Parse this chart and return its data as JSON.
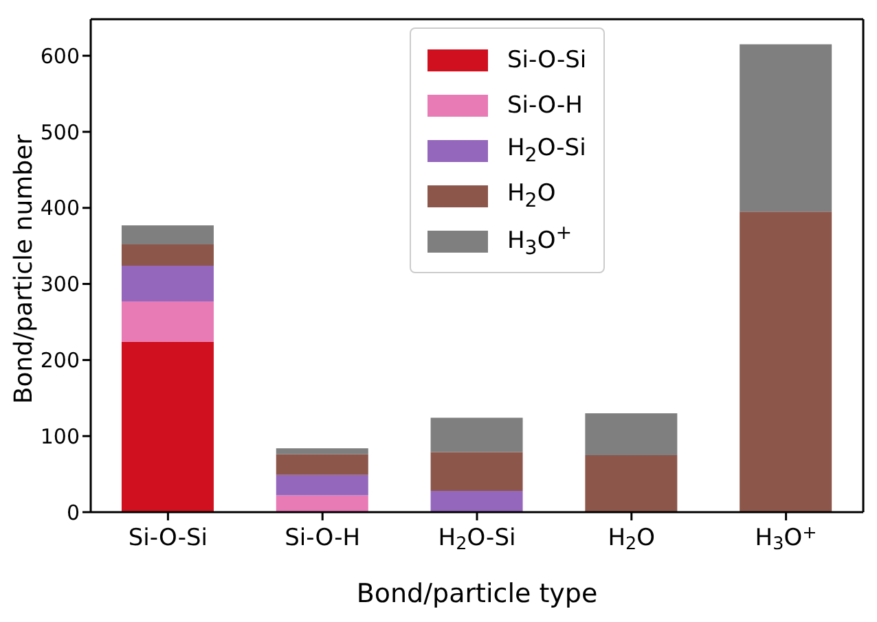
{
  "chart_data": {
    "type": "bar",
    "stacked": true,
    "xlabel": "Bond/particle type",
    "ylabel": "Bond/particle number",
    "categories": [
      "Si-O-Si",
      "Si-O-H",
      "H$_{2}$O-Si",
      "H$_{2}$O",
      "H$_{3}$O$^{+}$"
    ],
    "series": [
      {
        "name": "Si-O-Si",
        "color": "#d0101f",
        "values": [
          224,
          null,
          null,
          null,
          null
        ]
      },
      {
        "name": "Si-O-H",
        "color": "#e87ab5",
        "values": [
          53,
          22,
          null,
          null,
          null
        ]
      },
      {
        "name": "H$_{2}$O-Si",
        "color": "#9467bd",
        "values": [
          47,
          27,
          28,
          null,
          null
        ]
      },
      {
        "name": "H$_{2}$O",
        "color": "#8c564b",
        "values": [
          28,
          27,
          51,
          75,
          395
        ]
      },
      {
        "name": "H$_{3}$O$^{+}$",
        "color": "#7f7f7f",
        "values": [
          25,
          8,
          45,
          55,
          220
        ]
      }
    ],
    "ylim": [
      0,
      648
    ],
    "yticks": [
      0,
      100,
      200,
      300,
      400,
      500,
      600
    ],
    "legend": "top"
  }
}
